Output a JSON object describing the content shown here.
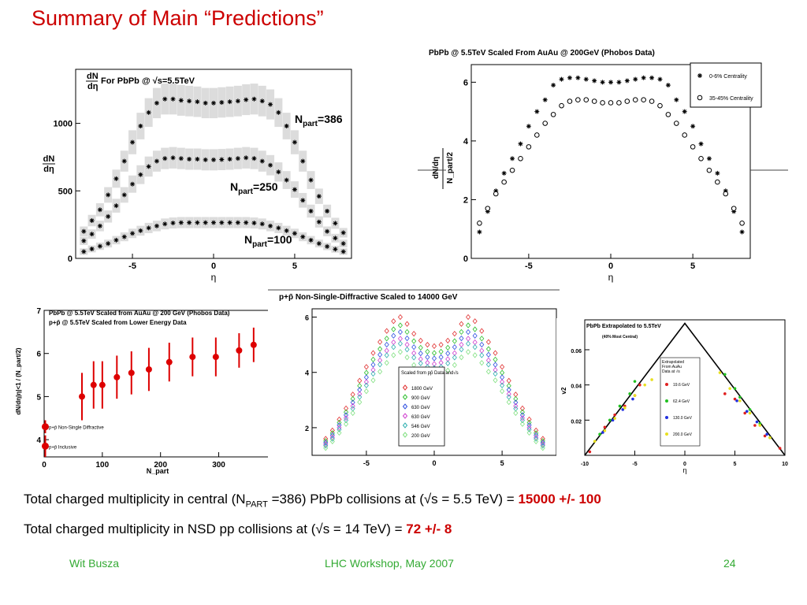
{
  "slide": {
    "title": "Summary of Main “Predictions”",
    "summary_lines": [
      {
        "a": "Total charged multiplicity in central (N",
        "sub": "PART",
        "b": " =386) PbPb collisions at (√s = 5.5 TeV) = ",
        "value": "15000 +/- 100"
      },
      {
        "a": "Total charged multiplicity in NSD pp collisions at (√s = 14 TeV) = ",
        "sub": "",
        "b": "",
        "value": "72 +/- 8"
      }
    ],
    "footer": {
      "left": "Wit Busza",
      "center": "LHC Workshop, May 2007",
      "right": "24"
    },
    "colors": {
      "title": "#cc0000",
      "footer": "#33aa33",
      "highlight": "#cc0000"
    }
  },
  "chart_data": [
    {
      "type": "scatter",
      "title": "For PbPb @ √s=5.5TeV",
      "xlabel": "η",
      "ylabel": "dN/dη",
      "xlim": [
        -8.5,
        8.5
      ],
      "ylim": [
        0,
        1400
      ],
      "xticks": [
        -5,
        0,
        5
      ],
      "yticks": [
        0,
        500,
        1000
      ],
      "band_color": "#dcdcdc",
      "series": [
        {
          "name": "N_part=386",
          "label_main": "N",
          "label_sub": "part",
          "label_val": "=386",
          "x": [
            -8,
            -7.5,
            -7,
            -6.5,
            -6,
            -5.5,
            -5,
            -4.5,
            -4,
            -3.5,
            -3,
            -2.5,
            -2,
            -1.5,
            -1,
            -0.5,
            0,
            0.5,
            1,
            1.5,
            2,
            2.5,
            3,
            3.5,
            4,
            4.5,
            5,
            5.5,
            6,
            6.5,
            7,
            7.5,
            8
          ],
          "y": [
            200,
            280,
            360,
            470,
            590,
            720,
            860,
            980,
            1080,
            1150,
            1180,
            1180,
            1170,
            1165,
            1160,
            1150,
            1150,
            1155,
            1160,
            1165,
            1175,
            1180,
            1165,
            1140,
            1080,
            980,
            860,
            720,
            580,
            460,
            350,
            260,
            190
          ]
        },
        {
          "name": "N_part=250",
          "label_main": "N",
          "label_sub": "part",
          "label_val": "=250",
          "x": [
            -8,
            -7.5,
            -7,
            -6.5,
            -6,
            -5.5,
            -5,
            -4.5,
            -4,
            -3.5,
            -3,
            -2.5,
            -2,
            -1.5,
            -1,
            -0.5,
            0,
            0.5,
            1,
            1.5,
            2,
            2.5,
            3,
            3.5,
            4,
            4.5,
            5,
            5.5,
            6,
            6.5,
            7,
            7.5,
            8
          ],
          "y": [
            130,
            180,
            240,
            310,
            390,
            470,
            550,
            620,
            680,
            720,
            740,
            745,
            740,
            735,
            735,
            730,
            730,
            732,
            735,
            740,
            745,
            740,
            720,
            690,
            640,
            580,
            510,
            430,
            350,
            270,
            200,
            150,
            110
          ]
        },
        {
          "name": "N_part=100",
          "label_main": "N",
          "label_sub": "part",
          "label_val": "=100",
          "x": [
            -8,
            -7.5,
            -7,
            -6.5,
            -6,
            -5.5,
            -5,
            -4.5,
            -4,
            -3.5,
            -3,
            -2.5,
            -2,
            -1.5,
            -1,
            -0.5,
            0,
            0.5,
            1,
            1.5,
            2,
            2.5,
            3,
            3.5,
            4,
            4.5,
            5,
            5.5,
            6,
            6.5,
            7,
            7.5,
            8
          ],
          "y": [
            50,
            70,
            90,
            110,
            135,
            160,
            185,
            205,
            225,
            240,
            255,
            262,
            265,
            265,
            265,
            265,
            265,
            265,
            265,
            265,
            265,
            262,
            255,
            240,
            225,
            205,
            185,
            160,
            135,
            110,
            88,
            68,
            50
          ]
        }
      ]
    },
    {
      "type": "scatter",
      "title": "PbPb @ 5.5TeV Scaled From AuAu @ 200GeV (Phobos Data)",
      "xlabel": "η",
      "ylabel_main": "dN/dη",
      "ylabel_den": "N_part/2",
      "xlim": [
        -8.5,
        8.5
      ],
      "ylim": [
        0,
        6.6
      ],
      "xticks": [
        -5,
        0,
        5
      ],
      "yticks": [
        0,
        2,
        4,
        6
      ],
      "legend": {
        "position": "top-right"
      },
      "series": [
        {
          "name": "0-6% Centrality",
          "marker": "star",
          "x": [
            -8,
            -7.5,
            -7,
            -6.5,
            -6,
            -5.5,
            -5,
            -4.5,
            -4,
            -3.5,
            -3,
            -2.5,
            -2,
            -1.5,
            -1,
            -0.5,
            0,
            0.5,
            1,
            1.5,
            2,
            2.5,
            3,
            3.5,
            4,
            4.5,
            5,
            5.5,
            6,
            6.5,
            7,
            7.5,
            8
          ],
          "y": [
            0.9,
            1.6,
            2.3,
            2.9,
            3.4,
            3.9,
            4.5,
            5.0,
            5.4,
            5.9,
            6.1,
            6.15,
            6.15,
            6.1,
            6.05,
            6.0,
            6.0,
            6.0,
            6.05,
            6.1,
            6.15,
            6.15,
            6.1,
            5.9,
            5.4,
            5.0,
            4.5,
            3.9,
            3.4,
            2.9,
            2.3,
            1.6,
            0.9
          ]
        },
        {
          "name": "35-45% Centrality",
          "marker": "circle",
          "x": [
            -8,
            -7.5,
            -7,
            -6.5,
            -6,
            -5.5,
            -5,
            -4.5,
            -4,
            -3.5,
            -3,
            -2.5,
            -2,
            -1.5,
            -1,
            -0.5,
            0,
            0.5,
            1,
            1.5,
            2,
            2.5,
            3,
            3.5,
            4,
            4.5,
            5,
            5.5,
            6,
            6.5,
            7,
            7.5,
            8
          ],
          "y": [
            1.2,
            1.7,
            2.2,
            2.6,
            3.0,
            3.4,
            3.8,
            4.2,
            4.6,
            4.9,
            5.2,
            5.35,
            5.4,
            5.4,
            5.35,
            5.3,
            5.3,
            5.3,
            5.35,
            5.4,
            5.4,
            5.35,
            5.2,
            4.9,
            4.6,
            4.2,
            3.8,
            3.4,
            3.0,
            2.6,
            2.2,
            1.7,
            1.2
          ]
        }
      ]
    },
    {
      "type": "scatter",
      "title": "PbPb @ 5.5TeV Scaled from AuAu @ 200 GeV (Phobos Data)",
      "subtitle": "p+p̄ @ 5.5TeV Scaled from Lower Energy Data",
      "xlabel": "N_part",
      "ylabel": "dN/dη|η|<1 / (N_part/2)",
      "xlim": [
        0,
        390
      ],
      "ylim": [
        3.6,
        7
      ],
      "xticks": [
        0,
        100,
        200,
        300
      ],
      "yticks": [
        4,
        5,
        6,
        7
      ],
      "series": [
        {
          "name": "PbPb",
          "x": [
            65,
            85,
            100,
            125,
            150,
            180,
            215,
            255,
            295,
            335,
            360
          ],
          "y": [
            5.0,
            5.27,
            5.27,
            5.45,
            5.55,
            5.63,
            5.8,
            5.92,
            5.92,
            6.07,
            6.2
          ],
          "err": [
            0.55,
            0.55,
            0.55,
            0.5,
            0.5,
            0.5,
            0.45,
            0.45,
            0.45,
            0.4,
            0.4
          ]
        },
        {
          "name": "p+p̄ Non-Single Diffractive",
          "x": [
            2
          ],
          "y": [
            4.3
          ],
          "err": [
            0.15
          ]
        },
        {
          "name": "p+p̄ Inclusive",
          "x": [
            2
          ],
          "y": [
            3.85
          ],
          "err": [
            0.25
          ]
        }
      ],
      "color": "#dd0000"
    },
    {
      "type": "scatter",
      "title": "p+p̄ Non-Single-Diffractive Scaled to 14000 GeV",
      "xlim": [
        -9,
        9
      ],
      "ylim": [
        1,
        6.3
      ],
      "xticks": [
        -5,
        0,
        5
      ],
      "yticks": [
        2,
        4,
        6
      ],
      "legend_title": "Scaled from pp̄ Data and√s",
      "legend": {
        "position": "bottom-center"
      },
      "series": [
        {
          "name": "1800 GeV",
          "color": "#e03030",
          "scale": 1.0
        },
        {
          "name": "900 GeV",
          "color": "#30c030",
          "scale": 0.95
        },
        {
          "name": "630 GeV",
          "color": "#3050e0",
          "scale": 0.91
        },
        {
          "name": "630 GeV",
          "color": "#d040d0",
          "scale": 0.87
        },
        {
          "name": "546 GeV",
          "color": "#30b0b0",
          "scale": 0.84
        },
        {
          "name": "200 GeV",
          "color": "#80e080",
          "scale": 0.79
        }
      ],
      "base_x": [
        -8,
        -7.5,
        -7,
        -6.5,
        -6,
        -5.5,
        -5,
        -4.5,
        -4,
        -3.5,
        -3,
        -2.5,
        -2,
        -1.5,
        -1,
        -0.5,
        0,
        0.5,
        1,
        1.5,
        2,
        2.5,
        3,
        3.5,
        4,
        4.5,
        5,
        5.5,
        6,
        6.5,
        7,
        7.5,
        8
      ],
      "base_y": [
        1.6,
        1.9,
        2.3,
        2.7,
        3.2,
        3.7,
        4.2,
        4.7,
        5.1,
        5.5,
        5.85,
        6.0,
        5.75,
        5.4,
        5.15,
        5.0,
        4.95,
        5.0,
        5.15,
        5.4,
        5.75,
        6.0,
        5.85,
        5.5,
        5.1,
        4.7,
        4.2,
        3.7,
        3.2,
        2.7,
        2.3,
        1.9,
        1.6
      ]
    },
    {
      "type": "scatter",
      "title": "PbPb Extrapolated to 5.5TeV",
      "subtitle": "(40% Most Central)",
      "xlabel": "η",
      "ylabel": "v2",
      "xlim": [
        -10,
        10
      ],
      "ylim": [
        0.0,
        0.077
      ],
      "xticks": [
        -10,
        -5,
        0,
        5,
        10
      ],
      "yticks": [
        0.02,
        0.04,
        0.06
      ],
      "legend_title": "Extrapolated From AuAu Data at √s",
      "line": {
        "x": [
          -10,
          0,
          10
        ],
        "y": [
          0.0,
          0.075,
          0.0
        ]
      },
      "series": [
        {
          "name": "19.6 GeV",
          "color": "#e02020",
          "x": [
            -9.5,
            -8,
            -7,
            -6,
            -5,
            -4.5,
            4,
            5,
            6,
            7,
            8,
            9.5
          ],
          "y": [
            0.002,
            0.016,
            0.023,
            0.028,
            0.034,
            0.04,
            0.035,
            0.032,
            0.024,
            0.017,
            0.011,
            0.004
          ]
        },
        {
          "name": "62.4 GeV",
          "color": "#20c020",
          "x": [
            -8.5,
            -7.5,
            -6.5,
            -5.5,
            -5,
            4,
            5,
            5.5,
            6.5,
            7.5,
            8.5
          ],
          "y": [
            0.012,
            0.02,
            0.028,
            0.035,
            0.042,
            0.046,
            0.038,
            0.033,
            0.026,
            0.018,
            0.01
          ]
        },
        {
          "name": "130.0 GeV",
          "color": "#2030e0",
          "x": [
            -8.2,
            -7.2,
            -6.2,
            -5.2,
            5.2,
            6.2,
            7.2,
            8.2
          ],
          "y": [
            0.013,
            0.02,
            0.026,
            0.032,
            0.031,
            0.025,
            0.019,
            0.012
          ]
        },
        {
          "name": "200.0 GeV",
          "color": "#e8e020",
          "x": [
            -9,
            -8,
            -7,
            -6,
            -5,
            -4,
            -3.3,
            3.5,
            4.5,
            5.5,
            6.5,
            7.5,
            8.5
          ],
          "y": [
            0.008,
            0.014,
            0.021,
            0.027,
            0.034,
            0.04,
            0.043,
            0.047,
            0.038,
            0.031,
            0.024,
            0.017,
            0.01
          ]
        }
      ]
    }
  ]
}
